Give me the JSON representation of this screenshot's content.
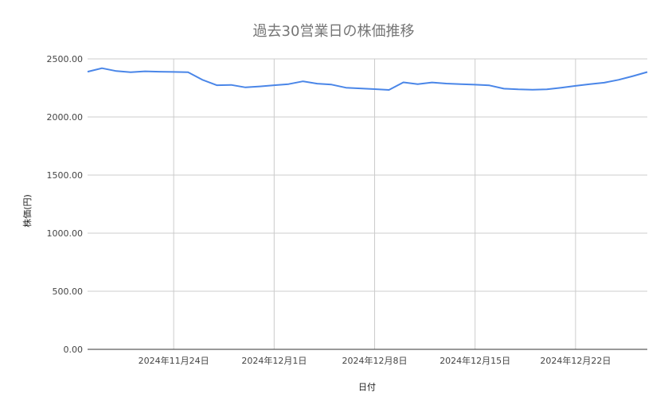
{
  "chart_data": {
    "type": "line",
    "title": "過去30営業日の株価推移",
    "xlabel": "日付",
    "ylabel": "株価(円)",
    "x_range": [
      "2024-11-18",
      "2024-12-26"
    ],
    "ylim": [
      0,
      2500
    ],
    "y_ticks": [
      "0.00",
      "500.00",
      "1000.00",
      "1500.00",
      "2000.00",
      "2500.00"
    ],
    "y_tick_values": [
      0,
      500,
      1000,
      1500,
      2000,
      2500
    ],
    "x_ticks": [
      {
        "date": "2024-11-24",
        "label": "2024年11月24日"
      },
      {
        "date": "2024-12-01",
        "label": "2024年12月1日"
      },
      {
        "date": "2024-12-08",
        "label": "2024年12月8日"
      },
      {
        "date": "2024-12-15",
        "label": "2024年12月15日"
      },
      {
        "date": "2024-12-22",
        "label": "2024年12月22日"
      }
    ],
    "grid": true,
    "legend": "none",
    "series": [
      {
        "color": "#4a86e8",
        "points": [
          {
            "x": "2024-11-18",
            "y": 2390
          },
          {
            "x": "2024-11-19",
            "y": 2420
          },
          {
            "x": "2024-11-20",
            "y": 2395
          },
          {
            "x": "2024-11-21",
            "y": 2385
          },
          {
            "x": "2024-11-22",
            "y": 2393
          },
          {
            "x": "2024-11-23",
            "y": 2390
          },
          {
            "x": "2024-11-24",
            "y": 2388
          },
          {
            "x": "2024-11-25",
            "y": 2385
          },
          {
            "x": "2024-11-26",
            "y": 2320
          },
          {
            "x": "2024-11-27",
            "y": 2273
          },
          {
            "x": "2024-11-28",
            "y": 2276
          },
          {
            "x": "2024-11-29",
            "y": 2255
          },
          {
            "x": "2024-11-30",
            "y": 2263
          },
          {
            "x": "2024-12-01",
            "y": 2273
          },
          {
            "x": "2024-12-02",
            "y": 2283
          },
          {
            "x": "2024-12-03",
            "y": 2307
          },
          {
            "x": "2024-12-04",
            "y": 2287
          },
          {
            "x": "2024-12-05",
            "y": 2279
          },
          {
            "x": "2024-12-06",
            "y": 2252
          },
          {
            "x": "2024-12-07",
            "y": 2246
          },
          {
            "x": "2024-12-08",
            "y": 2240
          },
          {
            "x": "2024-12-09",
            "y": 2233
          },
          {
            "x": "2024-12-10",
            "y": 2298
          },
          {
            "x": "2024-12-11",
            "y": 2283
          },
          {
            "x": "2024-12-12",
            "y": 2297
          },
          {
            "x": "2024-12-13",
            "y": 2288
          },
          {
            "x": "2024-12-14",
            "y": 2283
          },
          {
            "x": "2024-12-15",
            "y": 2278
          },
          {
            "x": "2024-12-16",
            "y": 2272
          },
          {
            "x": "2024-12-17",
            "y": 2244
          },
          {
            "x": "2024-12-18",
            "y": 2238
          },
          {
            "x": "2024-12-19",
            "y": 2235
          },
          {
            "x": "2024-12-20",
            "y": 2238
          },
          {
            "x": "2024-12-21",
            "y": 2252
          },
          {
            "x": "2024-12-22",
            "y": 2268
          },
          {
            "x": "2024-12-23",
            "y": 2282
          },
          {
            "x": "2024-12-24",
            "y": 2295
          },
          {
            "x": "2024-12-25",
            "y": 2320
          },
          {
            "x": "2024-12-26",
            "y": 2352
          },
          {
            "x": "2024-12-27",
            "y": 2387
          }
        ]
      }
    ]
  }
}
